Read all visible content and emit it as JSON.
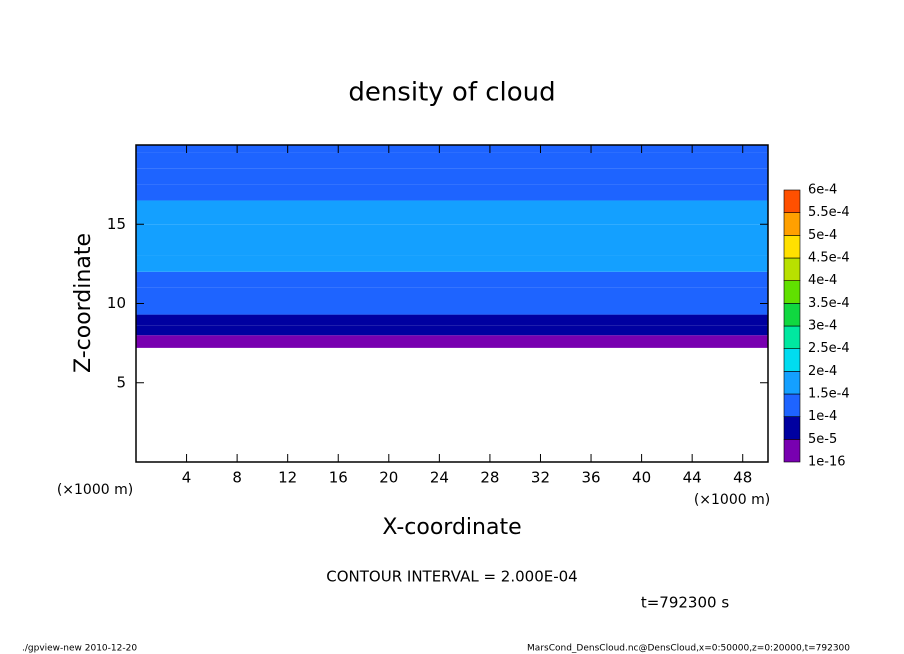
{
  "chart_data": {
    "type": "contour",
    "title": "density of cloud",
    "x_label": "X-coordinate",
    "y_label": "Z-coordinate",
    "x_unit": "(×1000 m)",
    "y_unit": "(×1000 m)",
    "contour_interval": "CONTOUR INTERVAL = 2.000E-04",
    "time_label": "t=792300 s",
    "footer_left": "./gpview-new  2010-12-20",
    "footer_right": "MarsCond_DensCloud.nc@DensCloud,x=0:50000,z=0:20000,t=792300",
    "xlim": [
      0,
      50
    ],
    "xticks": [
      4,
      8,
      12,
      16,
      20,
      24,
      28,
      32,
      36,
      40,
      44,
      48
    ],
    "ylim": [
      0,
      20
    ],
    "yticks": [
      5,
      10,
      15
    ],
    "z_edges": [
      7.2,
      8,
      8.6,
      9.3,
      10,
      11,
      12,
      13,
      15,
      16.5,
      17.5,
      18.5,
      19.5,
      20
    ],
    "values": [
      3e-05,
      7e-05,
      9e-05,
      0.00011,
      0.00013,
      0.00014,
      0.00016,
      0.00017,
      0.00016,
      0.00014,
      0.00012,
      0.00011,
      0.000105
    ],
    "levels": [
      {
        "value": 1e-16,
        "label": "1e-16"
      },
      {
        "value": 5e-05,
        "label": "5e-5"
      },
      {
        "value": 0.0001,
        "label": "1e-4"
      },
      {
        "value": 0.00015,
        "label": "1.5e-4"
      },
      {
        "value": 0.0002,
        "label": "2e-4"
      },
      {
        "value": 0.00025,
        "label": "2.5e-4"
      },
      {
        "value": 0.0003,
        "label": "3e-4"
      },
      {
        "value": 0.00035,
        "label": "3.5e-4"
      },
      {
        "value": 0.0004,
        "label": "4e-4"
      },
      {
        "value": 0.00045,
        "label": "4.5e-4"
      },
      {
        "value": 0.0005,
        "label": "5e-4"
      },
      {
        "value": 0.00055,
        "label": "5.5e-4"
      },
      {
        "value": 0.0006,
        "label": "6e-4"
      }
    ],
    "colors": [
      "#7800b0",
      "#0000a0",
      "#1e64ff",
      "#14a0ff",
      "#00dcf0",
      "#00e8a0",
      "#10d840",
      "#60e000",
      "#b8e000",
      "#ffe000",
      "#ffa000",
      "#ff5000",
      "#ff1818",
      "#ff8888"
    ]
  }
}
